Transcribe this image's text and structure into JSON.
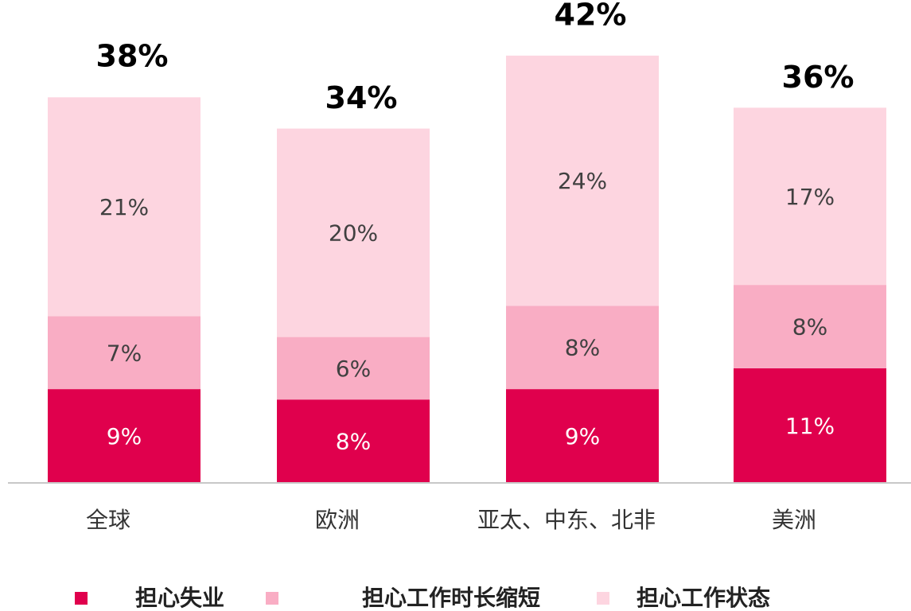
{
  "chart_data": {
    "type": "stacked_bar",
    "categories": [
      "全球",
      "欧洲",
      "亚太、中东、北非",
      "美洲"
    ],
    "series": [
      {
        "name": "担心失业",
        "color": "#e0004d",
        "values": [
          9,
          8,
          9,
          11
        ],
        "value_labels": [
          "9%",
          "8%",
          "9%",
          "11%"
        ]
      },
      {
        "name": "担心工作时长缩短",
        "color": "#f9adc4",
        "values": [
          7,
          6,
          8,
          8
        ],
        "value_labels": [
          "7%",
          "6%",
          "8%",
          "8%"
        ]
      },
      {
        "name": "担心工作状态",
        "color": "#fdd5e0",
        "values": [
          21,
          20,
          24,
          17
        ],
        "value_labels": [
          "21%",
          "20%",
          "24%",
          "17%"
        ]
      }
    ],
    "totals": [
      38,
      34,
      42,
      36
    ],
    "total_labels": [
      "38%",
      "34%",
      "42%",
      "36%"
    ],
    "legend": "bottom"
  }
}
